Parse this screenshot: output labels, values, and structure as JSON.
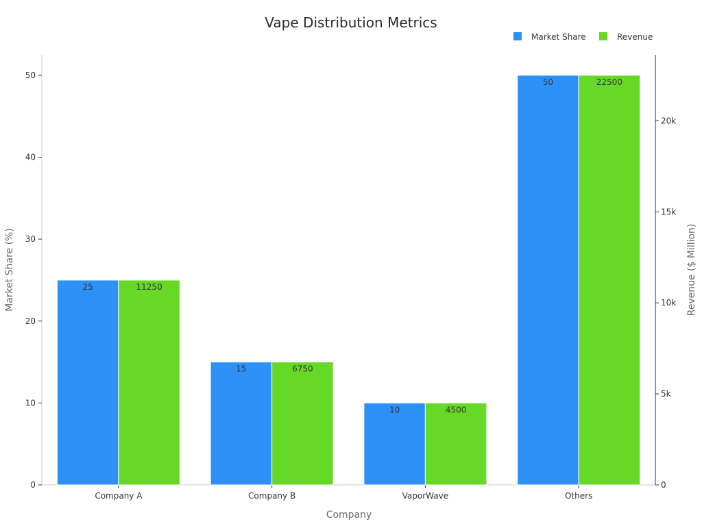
{
  "chart_data": {
    "type": "bar",
    "title": "Vape Distribution Metrics",
    "xlabel": "Company",
    "ylabel": "Market Share (%)",
    "y2label": "Revenue ($ Million)",
    "categories": [
      "Company A",
      "Company B",
      "VaporWave",
      "Others"
    ],
    "series": [
      {
        "name": "Market Share",
        "axis": "left",
        "color": "#2e91f8",
        "values": [
          25,
          15,
          10,
          50
        ]
      },
      {
        "name": "Revenue",
        "axis": "right",
        "color": "#66d926",
        "values": [
          11250,
          6750,
          4500,
          22500
        ]
      }
    ],
    "ylim": [
      0,
      52.5
    ],
    "y2lim": [
      0,
      23625
    ],
    "yticks": [
      0,
      10,
      20,
      30,
      40,
      50
    ],
    "ytick_labels": [
      "0",
      "10",
      "20",
      "30",
      "40",
      "50"
    ],
    "y2ticks": [
      0,
      5000,
      10000,
      15000,
      20000
    ],
    "y2tick_labels": [
      "0",
      "5k",
      "10k",
      "15k",
      "20k"
    ],
    "data_labels": [
      [
        "25",
        "15",
        "10",
        "50"
      ],
      [
        "11250",
        "6750",
        "4500",
        "22500"
      ]
    ],
    "legend": {
      "position": "top-right"
    },
    "grid": false
  }
}
